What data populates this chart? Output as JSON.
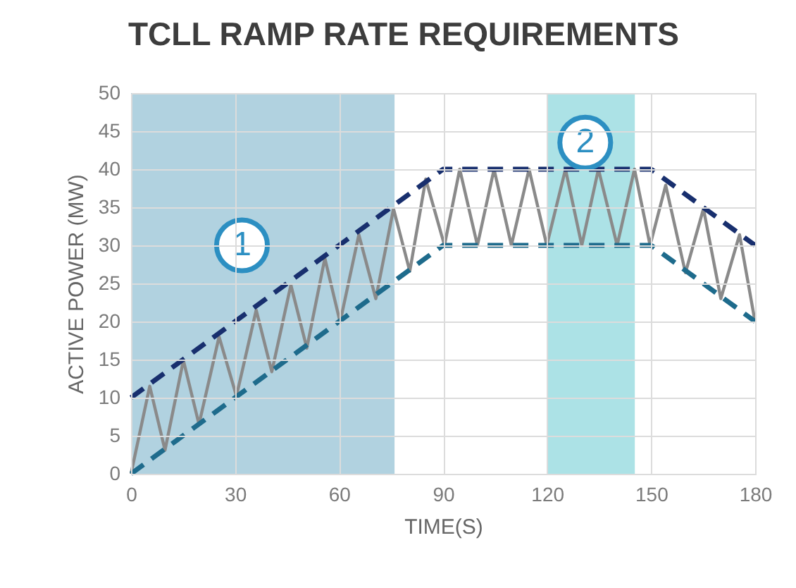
{
  "chart_data": {
    "type": "line",
    "title": "TCLL RAMP RATE REQUIREMENTS",
    "xlabel": "TIME(S)",
    "ylabel": "ACTIVE POWER (MW)",
    "xlim": [
      0,
      180
    ],
    "xticks": [
      0,
      30,
      60,
      90,
      120,
      150,
      180
    ],
    "ylim": [
      0,
      50
    ],
    "yticks": [
      0,
      5,
      10,
      15,
      20,
      25,
      30,
      35,
      40,
      45,
      50
    ],
    "grid": true,
    "marker": "none",
    "bands": [
      {
        "axis": "x",
        "from": 0,
        "to": 76,
        "color": "#a8cddd"
      },
      {
        "axis": "x",
        "from": 120,
        "to": 145.3,
        "color": "#a3dfe3"
      }
    ],
    "annotations": [
      {
        "text": "1",
        "x": 32,
        "y": 30
      },
      {
        "text": "2",
        "x": 131,
        "y": 43.5
      }
    ],
    "series": [
      {
        "color": "#8a8a8a",
        "line_style": "solid",
        "x": [
          0,
          5.4,
          9.8,
          15.1,
          19.6,
          25.4,
          30.4,
          36.1,
          40.6,
          46.1,
          50.7,
          55.9,
          60.3,
          65.7,
          70.6,
          75.7,
          80.4,
          85,
          90.4,
          94.8,
          99.9,
          104.7,
          109.7,
          114.8,
          119.9,
          125.3,
          130,
          134.8,
          140.2,
          145.2,
          149.7,
          154.2,
          159.9,
          165.1,
          170.1,
          175.5,
          180
        ],
        "values": [
          0,
          11.5,
          3.1,
          14.9,
          6.5,
          18,
          10.2,
          21.5,
          13.4,
          24.8,
          16.5,
          28.3,
          19.9,
          31.4,
          23,
          34.8,
          26.6,
          38.7,
          30,
          40,
          30,
          40,
          30,
          40,
          30,
          40,
          30,
          40,
          30,
          40,
          30,
          37.9,
          26.4,
          34.8,
          23,
          31.4,
          19.9
        ]
      },
      {
        "color": "#182f6e",
        "line_style": "dashed",
        "x": [
          0,
          90,
          150,
          180
        ],
        "values": [
          10,
          40,
          40,
          30
        ]
      },
      {
        "color": "#1e6b8c",
        "line_style": "dashed",
        "x": [
          0,
          90,
          150,
          180
        ],
        "values": [
          0,
          30,
          30,
          20
        ]
      }
    ]
  }
}
